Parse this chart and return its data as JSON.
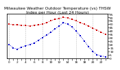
{
  "title": "Milwaukee Weather Outdoor Temperature (vs) THSW Index per Hour (Last 24 Hours)",
  "hours": [
    0,
    1,
    2,
    3,
    4,
    5,
    6,
    7,
    8,
    9,
    10,
    11,
    12,
    13,
    14,
    15,
    16,
    17,
    18,
    19,
    20,
    21,
    22,
    23
  ],
  "temp": [
    50,
    49,
    49,
    48,
    48,
    47,
    48,
    49,
    50,
    52,
    55,
    57,
    58,
    60,
    59,
    57,
    55,
    52,
    50,
    47,
    44,
    41,
    38,
    35
  ],
  "thsw": [
    20,
    15,
    13,
    16,
    18,
    20,
    22,
    26,
    30,
    34,
    38,
    43,
    47,
    52,
    50,
    46,
    40,
    33,
    25,
    17,
    10,
    5,
    3,
    2
  ],
  "temp_color": "#cc0000",
  "thsw_color": "#0000cc",
  "bg_color": "#ffffff",
  "ylim": [
    0,
    65
  ],
  "yticks": [
    0,
    5,
    10,
    15,
    20,
    25,
    30,
    35,
    40,
    45,
    50,
    55,
    60,
    65
  ],
  "grid_color": "#bbbbbb",
  "grid_hours": [
    0,
    4,
    8,
    12,
    16,
    20
  ],
  "title_fontsize": 4.2,
  "tick_fontsize": 3.2,
  "marker_size": 1.8,
  "line_width": 0.7,
  "marker": "s"
}
